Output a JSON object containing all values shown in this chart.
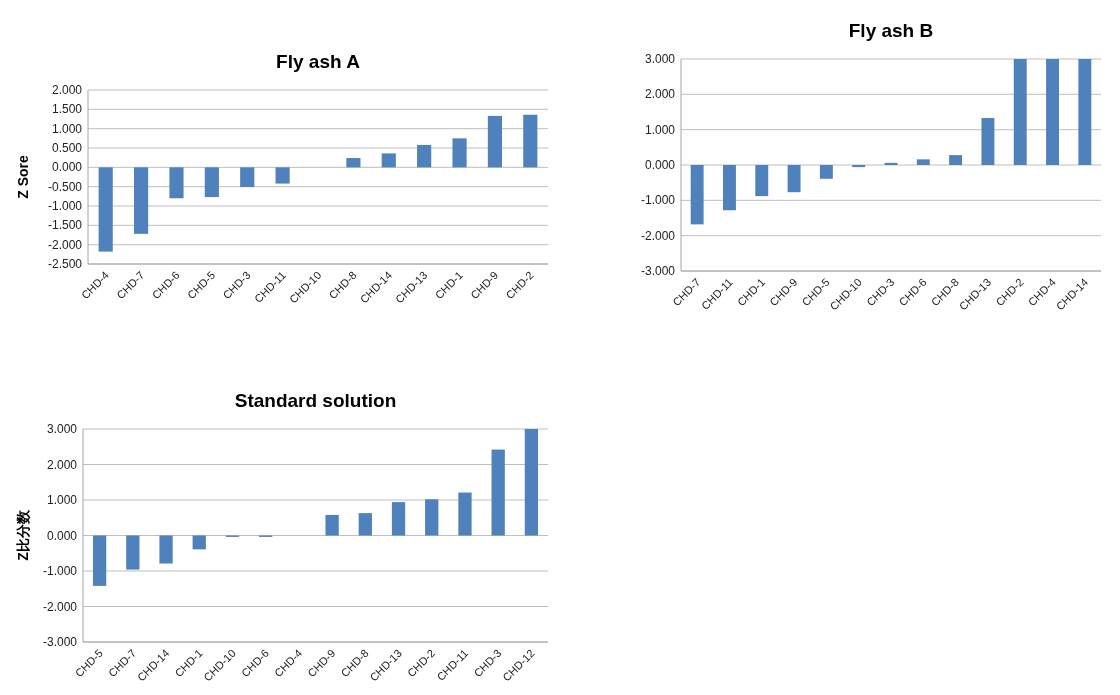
{
  "chart_data": [
    {
      "type": "bar",
      "title": "Fly ash A",
      "ylabel": "Z Sore",
      "categories": [
        "CHD-4",
        "CHD-7",
        "CHD-6",
        "CHD-5",
        "CHD-3",
        "CHD-11",
        "CHD-10",
        "CHD-8",
        "CHD-14",
        "CHD-13",
        "CHD-1",
        "CHD-9",
        "CHD-2"
      ],
      "values": [
        -2.18,
        -1.72,
        -0.8,
        -0.77,
        -0.51,
        -0.42,
        0,
        0.24,
        0.36,
        0.58,
        0.75,
        1.33,
        1.36
      ],
      "color": "#4f81bd",
      "ylim": [
        -2.5,
        2
      ],
      "yticks": [
        {
          "value": -2.5,
          "label": "-2.500"
        },
        {
          "value": -2,
          "label": "-2.000"
        },
        {
          "value": -1.5,
          "label": "-1.500"
        },
        {
          "value": -1,
          "label": "-1.000"
        },
        {
          "value": -0.5,
          "label": "-0.500"
        },
        {
          "value": 0,
          "label": "0.000"
        },
        {
          "value": 0.5,
          "label": "0.500"
        },
        {
          "value": 1,
          "label": "1.000"
        },
        {
          "value": 1.5,
          "label": "1.500"
        },
        {
          "value": 2,
          "label": "2.000"
        }
      ],
      "grid": "y"
    },
    {
      "type": "bar",
      "title": "Fly ash B",
      "categories": [
        "CHD-7",
        "CHD-11",
        "CHD-1",
        "CHD-9",
        "CHD-5",
        "CHD-10",
        "CHD-3",
        "CHD-6",
        "CHD-8",
        "CHD-13",
        "CHD-2",
        "CHD-4",
        "CHD-14"
      ],
      "values": [
        -1.68,
        -1.28,
        -0.88,
        -0.77,
        -0.39,
        -0.06,
        0.06,
        0.16,
        0.28,
        1.33,
        3,
        3,
        3
      ],
      "color": "#4f81bd",
      "ylim": [
        -3,
        3
      ],
      "yticks": [
        {
          "value": -3,
          "label": "-3.000"
        },
        {
          "value": -2,
          "label": "-2.000"
        },
        {
          "value": -1,
          "label": "-1.000"
        },
        {
          "value": 0,
          "label": "0.000"
        },
        {
          "value": 1,
          "label": "1.000"
        },
        {
          "value": 2,
          "label": "2.000"
        },
        {
          "value": 3,
          "label": "3.000"
        }
      ],
      "grid": "y"
    },
    {
      "type": "bar",
      "title": "Standard solution",
      "ylabel": "Z比分数",
      "categories": [
        "CHD-5",
        "CHD-7",
        "CHD-14",
        "CHD-1",
        "CHD-10",
        "CHD-6",
        "CHD-4",
        "CHD-9",
        "CHD-8",
        "CHD-13",
        "CHD-2",
        "CHD-11",
        "CHD-3",
        "CHD-12"
      ],
      "values": [
        -1.42,
        -0.96,
        -0.79,
        -0.39,
        -0.04,
        -0.04,
        0,
        0.58,
        0.63,
        0.94,
        1.02,
        1.21,
        2.42,
        3
      ],
      "color": "#4f81bd",
      "ylim": [
        -3,
        3
      ],
      "yticks": [
        {
          "value": -3,
          "label": "-3.000"
        },
        {
          "value": -2,
          "label": "-2.000"
        },
        {
          "value": -1,
          "label": "-1.000"
        },
        {
          "value": 0,
          "label": "0.000"
        },
        {
          "value": 1,
          "label": "1.000"
        },
        {
          "value": 2,
          "label": "2.000"
        },
        {
          "value": 3,
          "label": "3.000"
        }
      ],
      "grid": "y"
    }
  ]
}
